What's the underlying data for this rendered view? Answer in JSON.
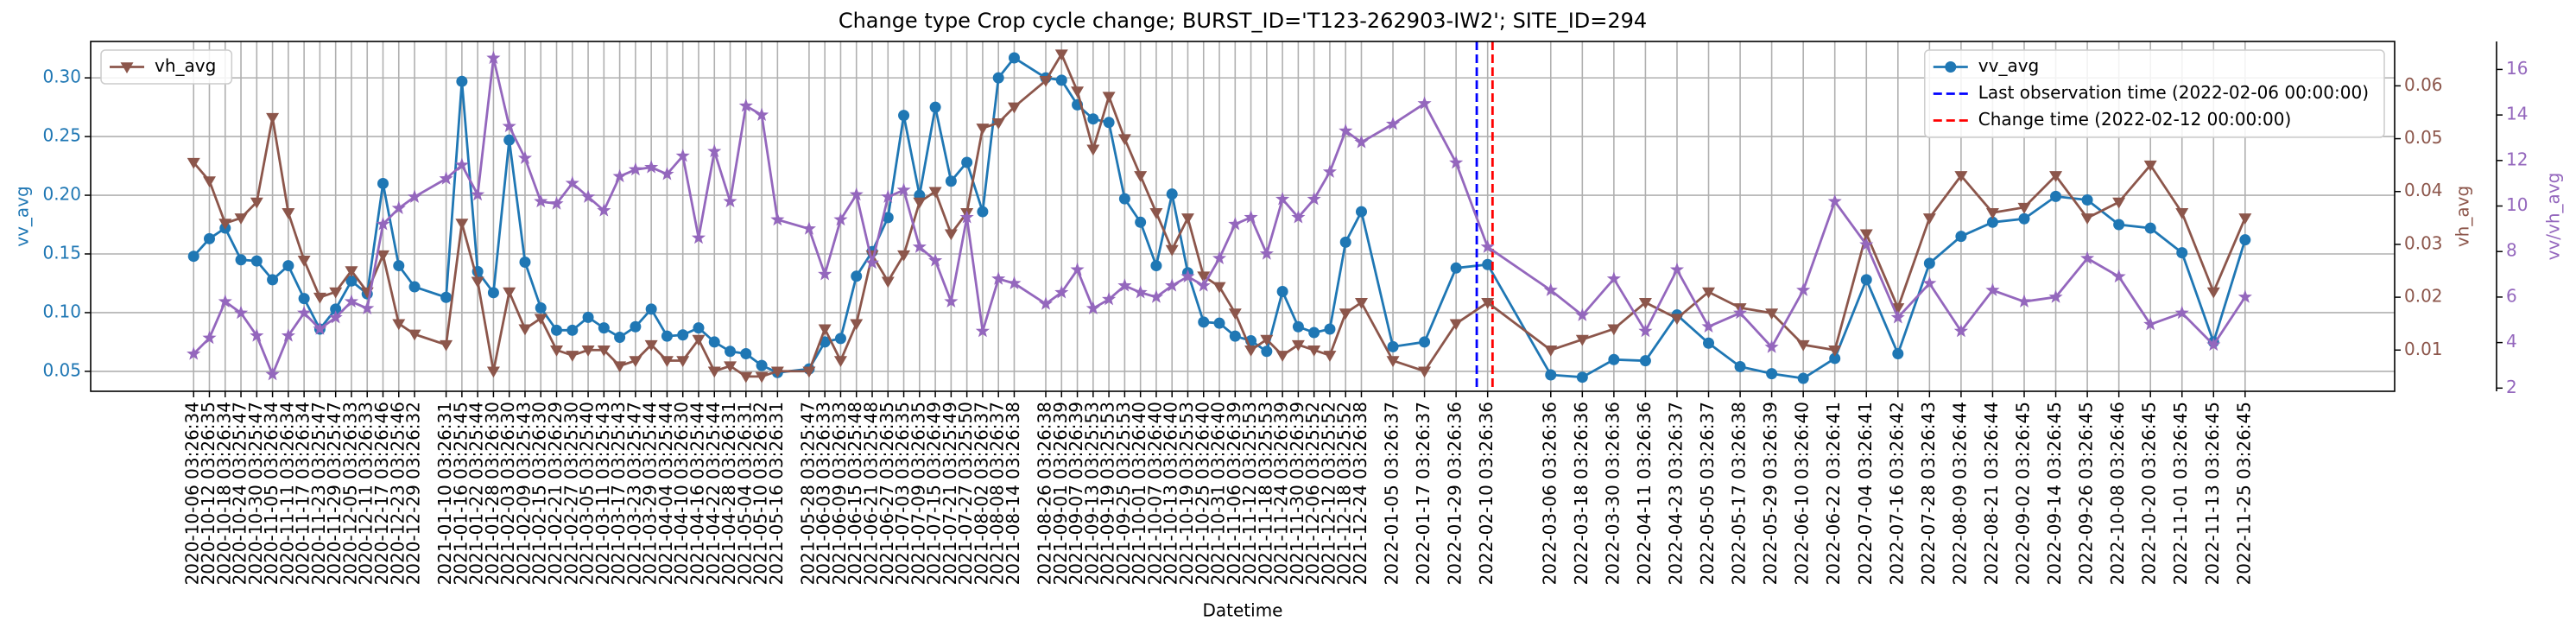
{
  "chart_data": {
    "type": "line",
    "title": "Change type Crop cycle change; BURST_ID='T123-262903-IW2'; SITE_ID=294",
    "xlabel": "Datetime",
    "ylabel": "vv_avg",
    "y2label": "vh_avg",
    "y3label": "vv/vh_avg",
    "x": [
      "2020-10-06 03:26:34",
      "2020-10-12 03:26:35",
      "2020-10-18 03:26:34",
      "2020-10-24 03:25:47",
      "2020-10-30 03:25:47",
      "2020-11-05 03:26:34",
      "2020-11-11 03:26:34",
      "2020-11-17 03:26:34",
      "2020-11-23 03:25:47",
      "2020-11-29 03:25:47",
      "2020-12-05 03:26:33",
      "2020-12-11 03:26:33",
      "2020-12-17 03:26:46",
      "2020-12-23 03:25:46",
      "2020-12-29 03:26:32",
      "2021-01-10 03:26:31",
      "2021-01-16 03:25:45",
      "2021-01-22 03:25:44",
      "2021-01-28 03:26:30",
      "2021-02-03 03:26:30",
      "2021-02-09 03:25:43",
      "2021-02-15 03:26:30",
      "2021-02-21 03:26:29",
      "2021-02-27 03:25:30",
      "2021-03-05 03:25:40",
      "2021-03-11 03:25:43",
      "2021-03-17 03:25:43",
      "2021-03-23 03:25:47",
      "2021-03-29 03:25:44",
      "2021-04-04 03:25:44",
      "2021-04-10 03:26:30",
      "2021-04-16 03:25:44",
      "2021-04-22 03:25:44",
      "2021-04-28 03:26:31",
      "2021-05-04 03:26:31",
      "2021-05-10 03:26:32",
      "2021-05-16 03:26:31",
      "2021-05-28 03:25:47",
      "2021-06-03 03:26:33",
      "2021-06-09 03:26:33",
      "2021-06-15 03:25:48",
      "2021-06-21 03:25:48",
      "2021-06-27 03:26:35",
      "2021-07-03 03:26:35",
      "2021-07-09 03:26:35",
      "2021-07-15 03:26:49",
      "2021-07-21 03:25:49",
      "2021-07-27 03:25:50",
      "2021-08-02 03:26:37",
      "2021-08-08 03:26:37",
      "2021-08-14 03:26:38",
      "2021-08-26 03:26:38",
      "2021-09-01 03:26:39",
      "2021-09-07 03:26:39",
      "2021-09-13 03:25:53",
      "2021-09-19 03:25:53",
      "2021-09-25 03:25:53",
      "2021-10-01 03:26:40",
      "2021-10-07 03:26:40",
      "2021-10-13 03:26:40",
      "2021-10-19 03:25:53",
      "2021-10-25 03:26:40",
      "2021-10-31 03:26:40",
      "2021-11-06 03:26:39",
      "2021-11-12 03:25:53",
      "2021-11-18 03:25:53",
      "2021-11-24 03:26:39",
      "2021-11-30 03:26:39",
      "2021-12-06 03:25:52",
      "2021-12-12 03:25:52",
      "2021-12-18 03:25:52",
      "2021-12-24 03:26:38",
      "2022-01-05 03:26:37",
      "2022-01-17 03:26:37",
      "2022-01-29 03:26:36",
      "2022-02-10 03:26:36",
      "2022-03-06 03:26:36",
      "2022-03-18 03:26:36",
      "2022-03-30 03:26:36",
      "2022-04-11 03:26:36",
      "2022-04-23 03:26:37",
      "2022-05-05 03:26:37",
      "2022-05-17 03:26:38",
      "2022-05-29 03:26:39",
      "2022-06-10 03:26:40",
      "2022-06-22 03:26:41",
      "2022-07-04 03:26:41",
      "2022-07-16 03:26:42",
      "2022-07-28 03:26:43",
      "2022-08-09 03:26:44",
      "2022-08-21 03:26:44",
      "2022-09-02 03:26:45",
      "2022-09-14 03:26:45",
      "2022-09-26 03:26:45",
      "2022-10-08 03:26:46",
      "2022-10-20 03:26:45",
      "2022-11-01 03:26:45",
      "2022-11-13 03:26:45",
      "2022-11-25 03:26:45"
    ],
    "xlim": [
      "2020-08-28 00:00:00",
      "2023-01-21 00:00:00"
    ],
    "xgrid": true,
    "ylim": [
      0.033,
      0.331
    ],
    "yticks": [
      0.05,
      {
        "value": 0.1,
        "label": "0.10"
      },
      0.15,
      {
        "value": 0.2,
        "label": "0.20"
      },
      0.25,
      {
        "value": 0.3,
        "label": "0.30"
      }
    ],
    "ygrid": true,
    "y2lim": [
      0.0022,
      0.0684
    ],
    "y2ticks": [
      0.01,
      0.02,
      0.03,
      0.04,
      0.05,
      0.06
    ],
    "y3lim": [
      1.86,
      17.23
    ],
    "y3ticks": [
      2,
      4,
      6,
      8,
      10,
      12,
      14,
      16
    ],
    "series": [
      {
        "name": "vv_avg",
        "color": "#1f77b4",
        "marker": "circle",
        "axis": "y",
        "legend": "upper right",
        "values": [
          0.148,
          0.163,
          0.172,
          0.145,
          0.144,
          0.128,
          0.14,
          0.112,
          0.086,
          0.103,
          0.127,
          0.116,
          0.21,
          0.14,
          0.122,
          0.113,
          0.297,
          0.135,
          0.117,
          0.247,
          0.143,
          0.104,
          0.085,
          0.085,
          0.096,
          0.087,
          0.079,
          0.088,
          0.103,
          0.08,
          0.081,
          0.087,
          0.075,
          0.067,
          0.065,
          0.055,
          0.049,
          0.052,
          0.075,
          0.078,
          0.131,
          0.152,
          0.181,
          0.268,
          0.2,
          0.275,
          0.212,
          0.228,
          0.186,
          0.3,
          0.317,
          0.3,
          0.298,
          0.277,
          0.265,
          0.262,
          0.197,
          0.177,
          0.14,
          0.201,
          0.134,
          0.092,
          0.091,
          0.08,
          0.076,
          0.067,
          0.118,
          0.088,
          0.083,
          0.086,
          0.16,
          0.186,
          0.071,
          0.075,
          0.138,
          0.141,
          0.047,
          0.045,
          0.06,
          0.059,
          0.098,
          0.074,
          0.054,
          0.048,
          0.044,
          0.061,
          0.128,
          0.065,
          0.142,
          0.165,
          0.177,
          0.18,
          0.199,
          0.196,
          0.175,
          0.172,
          0.151,
          0.075,
          0.162
        ]
      },
      {
        "name": "vh_avg",
        "color": "#8c564b",
        "marker": "triangle-down",
        "axis": "y2",
        "legend": "upper left",
        "values": [
          0.0455,
          0.042,
          0.034,
          0.035,
          0.038,
          0.054,
          0.036,
          0.027,
          0.02,
          0.021,
          0.025,
          0.021,
          0.028,
          0.015,
          0.013,
          0.011,
          0.034,
          0.023,
          0.006,
          0.021,
          0.014,
          0.016,
          0.01,
          0.009,
          0.01,
          0.01,
          0.007,
          0.008,
          0.011,
          0.008,
          0.008,
          0.012,
          0.006,
          0.007,
          0.005,
          0.005,
          0.006,
          0.006,
          0.014,
          0.008,
          0.015,
          0.028,
          0.023,
          0.028,
          0.038,
          0.04,
          0.032,
          0.036,
          0.052,
          0.053,
          0.056,
          0.061,
          0.066,
          0.059,
          0.048,
          0.058,
          0.05,
          0.043,
          0.036,
          0.029,
          0.035,
          0.024,
          0.022,
          0.017,
          0.01,
          0.012,
          0.009,
          0.011,
          0.01,
          0.009,
          0.017,
          0.019,
          0.008,
          0.006,
          0.015,
          0.019,
          0.01,
          0.012,
          0.014,
          0.019,
          0.016,
          0.021,
          0.018,
          0.017,
          0.011,
          0.01,
          0.032,
          0.018,
          0.035,
          0.043,
          0.036,
          0.037,
          0.043,
          0.035,
          0.038,
          0.045,
          0.036,
          0.021,
          0.035
        ]
      },
      {
        "color": "#9467bd",
        "marker": "star",
        "axis": "y3",
        "values": [
          3.5,
          4.2,
          5.8,
          5.3,
          4.3,
          2.6,
          4.3,
          5.3,
          4.6,
          5.1,
          5.8,
          5.5,
          9.2,
          9.9,
          10.4,
          11.2,
          11.8,
          10.5,
          16.5,
          13.5,
          12.1,
          10.2,
          10.1,
          11.0,
          10.4,
          9.8,
          11.3,
          11.6,
          11.7,
          11.4,
          12.2,
          8.6,
          12.4,
          10.2,
          14.4,
          14.0,
          9.4,
          9.0,
          7.0,
          9.4,
          10.5,
          7.5,
          10.4,
          10.7,
          8.2,
          7.6,
          5.8,
          9.5,
          4.5,
          6.8,
          6.6,
          5.7,
          6.2,
          7.2,
          5.5,
          5.9,
          6.5,
          6.2,
          6.0,
          6.5,
          6.9,
          6.5,
          7.7,
          9.2,
          9.5,
          7.9,
          10.3,
          9.5,
          10.3,
          11.5,
          13.3,
          12.8,
          13.6,
          14.5,
          11.9,
          8.2,
          6.3,
          5.2,
          6.8,
          4.5,
          7.2,
          4.7,
          5.3,
          3.8,
          6.3,
          10.2,
          8.3,
          5.1,
          6.6,
          4.5,
          6.3,
          5.8,
          6.0,
          7.7,
          6.9,
          4.8,
          5.3,
          3.9,
          6.0
        ]
      }
    ],
    "vlines": [
      {
        "label": "Last observation time (2022-02-06 00:00:00)",
        "x": "2022-02-06 00:00:00",
        "color": "#0000ff",
        "legend": "upper right"
      },
      {
        "label": "Change time (2022-02-12 00:00:00)",
        "x": "2022-02-12 00:00:00",
        "color": "#ff0000",
        "legend": "upper right"
      }
    ]
  }
}
